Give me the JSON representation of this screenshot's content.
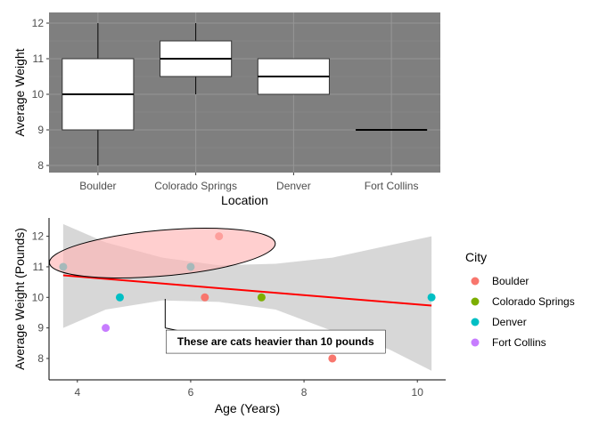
{
  "chart_data": [
    {
      "type": "box",
      "xlabel": "Location",
      "ylabel": "Average Weight",
      "categories": [
        "Boulder",
        "Colorado Springs",
        "Denver",
        "Fort Collins"
      ],
      "boxes": [
        {
          "category": "Boulder",
          "min": 8,
          "q1": 9,
          "median": 10,
          "q3": 11,
          "max": 12
        },
        {
          "category": "Colorado Springs",
          "min": 10,
          "q1": 10.5,
          "median": 11,
          "q3": 11.5,
          "max": 12
        },
        {
          "category": "Denver",
          "min": 10,
          "q1": 10,
          "median": 10.5,
          "q3": 11,
          "max": 11
        },
        {
          "category": "Fort Collins",
          "min": 9,
          "q1": 9,
          "median": 9,
          "q3": 9,
          "max": 9
        }
      ],
      "ylim": [
        7.8,
        12.3
      ],
      "yticks": [
        "8",
        "9",
        "10",
        "11",
        "12"
      ],
      "panel_background": "#7f7f7f",
      "grid": true
    },
    {
      "type": "scatter",
      "xlabel": "Age (Years)",
      "ylabel": "Average Weight (Pounds)",
      "xlim": [
        3.5,
        10.5
      ],
      "ylim": [
        7.3,
        12.6
      ],
      "xticks": [
        "4",
        "6",
        "8",
        "10"
      ],
      "yticks": [
        "8",
        "9",
        "10",
        "11",
        "12"
      ],
      "grid": false,
      "legend": {
        "title": "City",
        "position": "right",
        "entries": [
          {
            "label": "Boulder",
            "color": "#f8766d"
          },
          {
            "label": "Colorado Springs",
            "color": "#7cae00"
          },
          {
            "label": "Denver",
            "color": "#00bfc4"
          },
          {
            "label": "Fort Collins",
            "color": "#c77cff"
          }
        ]
      },
      "points": [
        {
          "x": 3.75,
          "y": 11,
          "city": "Denver"
        },
        {
          "x": 4.75,
          "y": 10,
          "city": "Denver"
        },
        {
          "x": 4.5,
          "y": 9,
          "city": "Fort Collins"
        },
        {
          "x": 6.0,
          "y": 11,
          "city": "Denver"
        },
        {
          "x": 6.25,
          "y": 10,
          "city": "Boulder"
        },
        {
          "x": 6.5,
          "y": 12,
          "city": "Boulder"
        },
        {
          "x": 7.25,
          "y": 10,
          "city": "Colorado Springs"
        },
        {
          "x": 8.5,
          "y": 8,
          "city": "Boulder"
        },
        {
          "x": 10.25,
          "y": 10,
          "city": "Denver"
        }
      ],
      "trend_line": {
        "color": "#ff0000",
        "x": [
          3.75,
          10.25
        ],
        "y": [
          10.72,
          9.73
        ]
      },
      "confidence_band": {
        "color": "#d3d3d3",
        "x": [
          3.75,
          4.5,
          5.5,
          6.5,
          7.5,
          8.5,
          9.5,
          10.25
        ],
        "upper": [
          12.4,
          11.8,
          11.3,
          11.05,
          11.1,
          11.3,
          11.7,
          12.0
        ],
        "lower": [
          9.0,
          9.6,
          9.9,
          9.85,
          9.6,
          8.9,
          8.3,
          7.6
        ]
      },
      "annotation": {
        "text": "These are cats heavier than 10 pounds",
        "ellipse_fill": "#ffb6b6",
        "ellipse_center": [
          5.5,
          11.45
        ],
        "ellipse_radius": [
          2.0,
          0.75
        ],
        "leader_from": [
          5.55,
          9.95
        ],
        "leader_to": [
          5.55,
          9.0
        ],
        "label_position": [
          7.5,
          8.55
        ]
      }
    }
  ]
}
